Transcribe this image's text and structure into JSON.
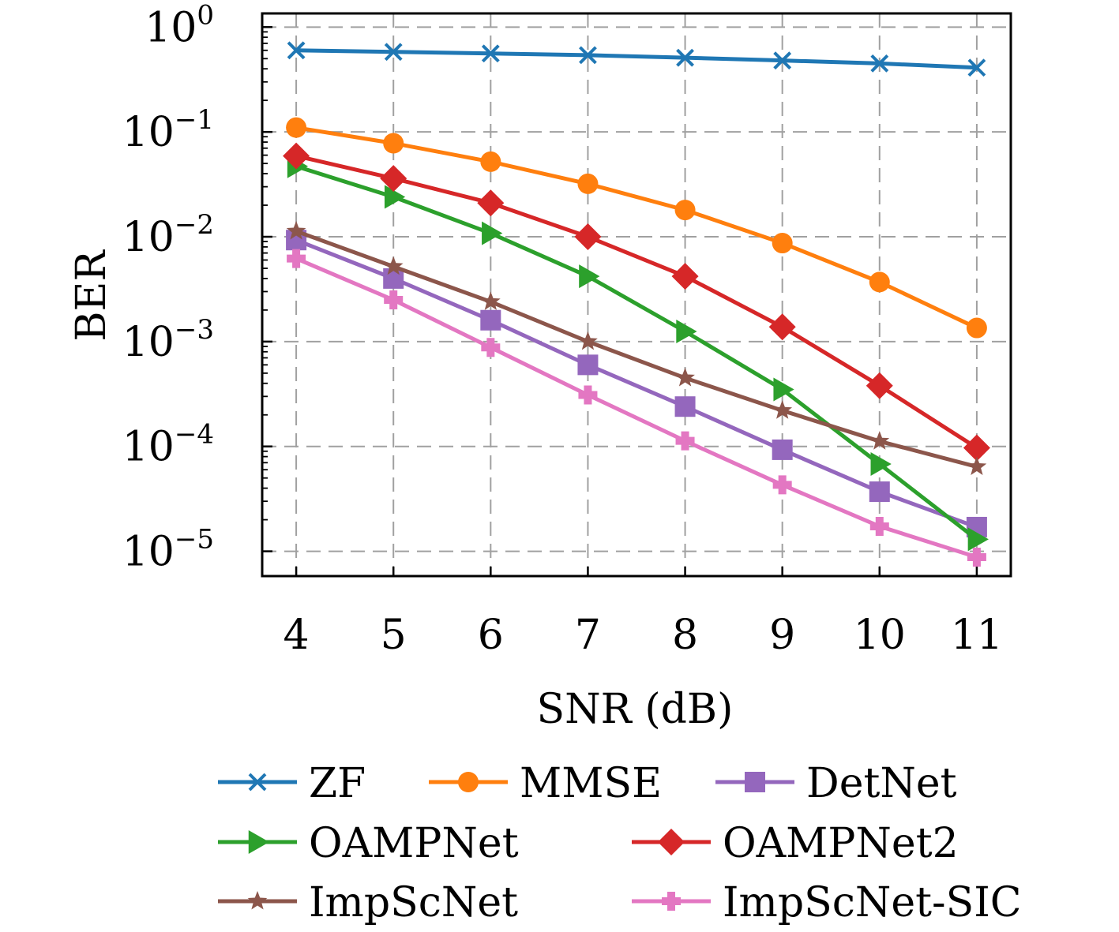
{
  "chart_data": {
    "type": "line",
    "xlabel": "SNR (dB)",
    "ylabel": "BER",
    "yscale": "log",
    "x": [
      4,
      5,
      6,
      7,
      8,
      9,
      10,
      11
    ],
    "xlim": [
      3.65,
      11.35
    ],
    "ylim": [
      5.8e-06,
      1.35
    ],
    "xticks": [
      "4",
      "5",
      "6",
      "7",
      "8",
      "9",
      "10",
      "11"
    ],
    "yticks": [
      {
        "value": 1,
        "base": "10",
        "exp": "0"
      },
      {
        "value": 0.1,
        "base": "10",
        "exp": "−1"
      },
      {
        "value": 0.01,
        "base": "10",
        "exp": "−2"
      },
      {
        "value": 0.001,
        "base": "10",
        "exp": "−3"
      },
      {
        "value": 0.0001,
        "base": "10",
        "exp": "−4"
      },
      {
        "value": 1e-05,
        "base": "10",
        "exp": "−5"
      }
    ],
    "grid": true,
    "legend_position": "bottom",
    "series": [
      {
        "name": "ZF",
        "color": "#1f77b4",
        "marker": "x",
        "values": [
          0.6,
          0.58,
          0.56,
          0.54,
          0.51,
          0.48,
          0.45,
          0.41
        ]
      },
      {
        "name": "MMSE",
        "color": "#ff7f0e",
        "marker": "circle",
        "values": [
          0.11,
          0.078,
          0.052,
          0.032,
          0.018,
          0.0087,
          0.0037,
          0.00135
        ]
      },
      {
        "name": "DetNet",
        "color": "#9467bd",
        "marker": "square",
        "values": [
          0.0093,
          0.004,
          0.0016,
          0.0006,
          0.00024,
          9.3e-05,
          3.7e-05,
          1.7e-05
        ]
      },
      {
        "name": "OAMPNet",
        "color": "#2ca02c",
        "marker": "triangle-right",
        "values": [
          0.047,
          0.024,
          0.0108,
          0.0042,
          0.00125,
          0.00035,
          6.8e-05,
          1.3e-05
        ]
      },
      {
        "name": "OAMPNet2",
        "color": "#d62728",
        "marker": "diamond",
        "values": [
          0.059,
          0.036,
          0.021,
          0.01,
          0.0042,
          0.00138,
          0.00038,
          9.7e-05
        ]
      },
      {
        "name": "ImpScNet",
        "color": "#8c564b",
        "marker": "star",
        "values": [
          0.0113,
          0.0052,
          0.0024,
          0.001,
          0.00045,
          0.00022,
          0.000112,
          6.4e-05
        ]
      },
      {
        "name": "ImpScNet-SIC",
        "color": "#e377c2",
        "marker": "plus",
        "values": [
          0.0062,
          0.0025,
          0.00088,
          0.00031,
          0.000113,
          4.3e-05,
          1.73e-05,
          8.8e-06
        ]
      }
    ]
  }
}
